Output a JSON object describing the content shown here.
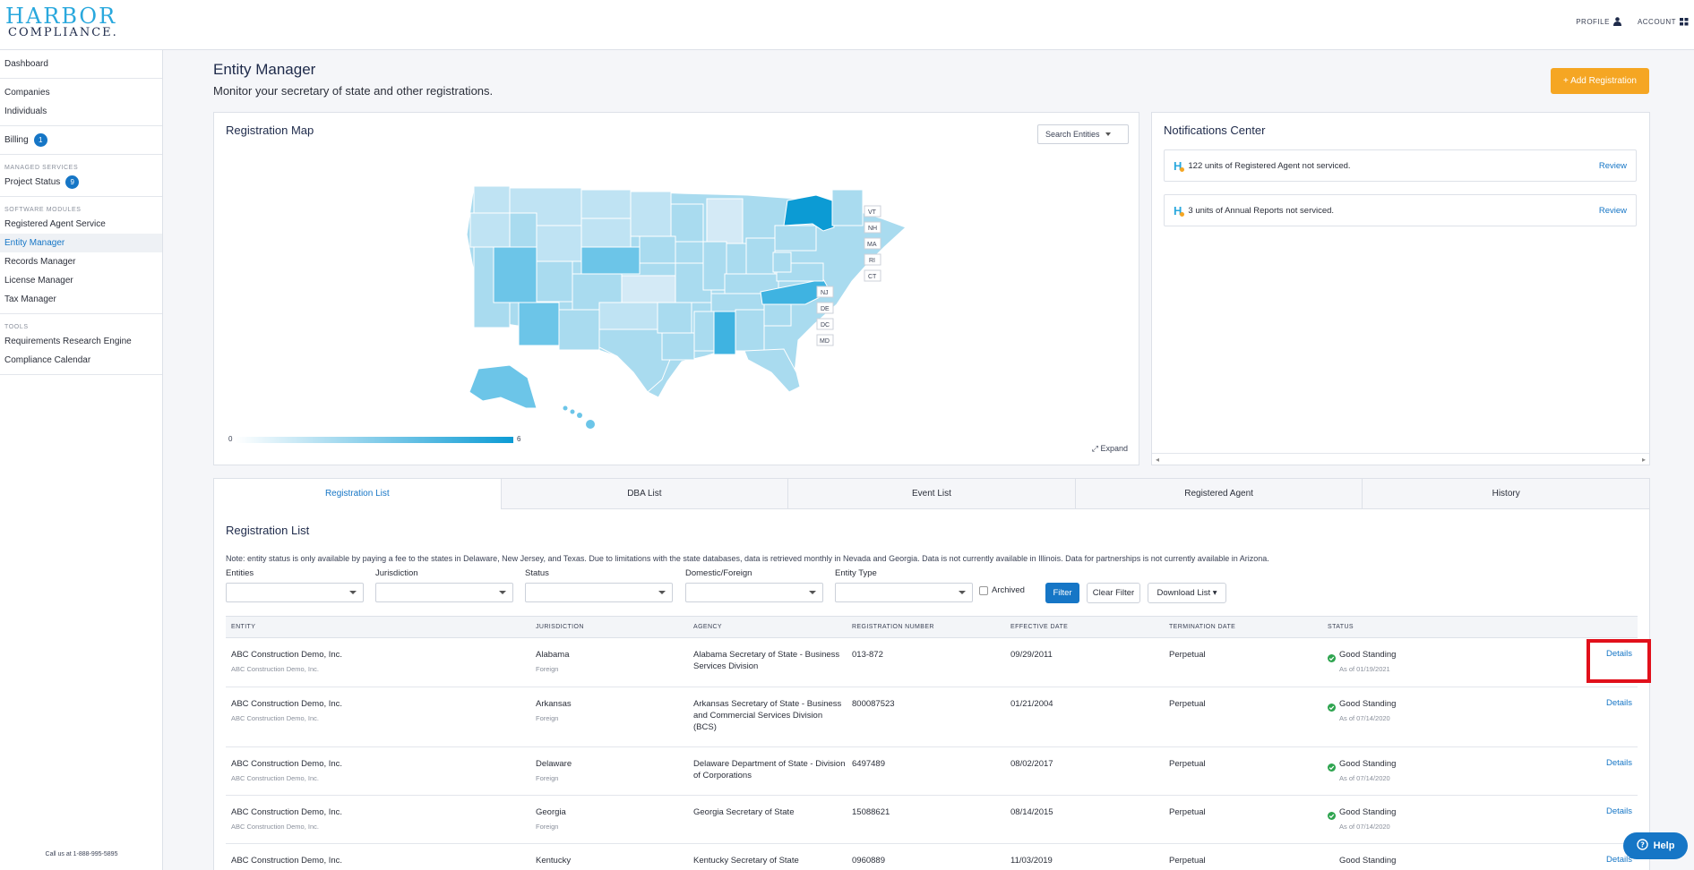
{
  "brand": {
    "line1": "HARBOR",
    "line2": "COMPLIANCE."
  },
  "topnav": {
    "profile": "PROFILE",
    "account": "ACCOUNT"
  },
  "sidebar": {
    "dashboard": "Dashboard",
    "companies": "Companies",
    "individuals": "Individuals",
    "billing": "Billing",
    "billing_badge": "1",
    "managed_services_header": "MANAGED SERVICES",
    "project_status": "Project Status",
    "project_status_badge": "9",
    "software_modules_header": "SOFTWARE MODULES",
    "registered_agent_service": "Registered Agent Service",
    "entity_manager": "Entity Manager",
    "records_manager": "Records Manager",
    "license_manager": "License Manager",
    "tax_manager": "Tax Manager",
    "tools_header": "TOOLS",
    "requirements_research_engine": "Requirements Research Engine",
    "compliance_calendar": "Compliance Calendar",
    "call_us": "Call us at 1-888-995-5895"
  },
  "header": {
    "title": "Entity Manager",
    "subtitle": "Monitor your secretary of state and other registrations.",
    "add_button": "+ Add Registration"
  },
  "map": {
    "title": "Registration Map",
    "search": "Search Entities",
    "legend_min": "0",
    "legend_max": "6",
    "expand": "Expand",
    "small_states": [
      "VT",
      "NH",
      "MA",
      "RI",
      "CT",
      "NJ",
      "DE",
      "DC",
      "MD"
    ],
    "colors": {
      "low": "#d4eaf6",
      "mid": "#a9dbef",
      "high": "#6cc5e8",
      "max": "#0c9bd4"
    }
  },
  "notifications": {
    "title": "Notifications Center",
    "items": [
      {
        "count": "122 units",
        "text": " of Registered Agent not serviced.",
        "action": "Review"
      },
      {
        "count": "3 units",
        "text": " of Annual Reports not serviced.",
        "action": "Review"
      }
    ]
  },
  "tabs": [
    "Registration List",
    "DBA List",
    "Event List",
    "Registered Agent",
    "History"
  ],
  "registration_list": {
    "title": "Registration List",
    "note": "Note: entity status is only available by paying a fee to the states in Delaware, New Jersey, and Texas. Due to limitations with the state databases, data is retrieved monthly in Nevada and Georgia. Data is not currently available in Illinois. Data for partnerships is not currently available in Arizona.",
    "filters": {
      "entities": "Entities",
      "jurisdiction": "Jurisdiction",
      "status": "Status",
      "domestic_foreign": "Domestic/Foreign",
      "entity_type": "Entity Type",
      "archived": "Archived",
      "filter_btn": "Filter",
      "clear_btn": "Clear Filter",
      "download_btn": "Download List ▾"
    },
    "columns": [
      "ENTITY",
      "JURISDICTION",
      "AGENCY",
      "REGISTRATION NUMBER",
      "EFFECTIVE DATE",
      "TERMINATION DATE",
      "STATUS"
    ],
    "details_label": "Details",
    "rows": [
      {
        "entity": "ABC Construction Demo, Inc.",
        "entity_sub": "ABC Construction Demo, Inc.",
        "jurisdiction": "Alabama",
        "jurisdiction_sub": "Foreign",
        "agency": "Alabama Secretary of State - Business Services Division",
        "reg_no": "013-872",
        "effective": "09/29/2011",
        "termination": "Perpetual",
        "status": "Good Standing",
        "status_sub": "As of 01/19/2021"
      },
      {
        "entity": "ABC Construction Demo, Inc.",
        "entity_sub": "ABC Construction Demo, Inc.",
        "jurisdiction": "Arkansas",
        "jurisdiction_sub": "Foreign",
        "agency": "Arkansas Secretary of State - Business and Commercial Services Division (BCS)",
        "reg_no": "800087523",
        "effective": "01/21/2004",
        "termination": "Perpetual",
        "status": "Good Standing",
        "status_sub": "As of 07/14/2020"
      },
      {
        "entity": "ABC Construction Demo, Inc.",
        "entity_sub": "ABC Construction Demo, Inc.",
        "jurisdiction": "Delaware",
        "jurisdiction_sub": "Foreign",
        "agency": "Delaware Department of State - Division of Corporations",
        "reg_no": "6497489",
        "effective": "08/02/2017",
        "termination": "Perpetual",
        "status": "Good Standing",
        "status_sub": "As of 07/14/2020"
      },
      {
        "entity": "ABC Construction Demo, Inc.",
        "entity_sub": "ABC Construction Demo, Inc.",
        "jurisdiction": "Georgia",
        "jurisdiction_sub": "Foreign",
        "agency": "Georgia Secretary of State",
        "reg_no": "15088621",
        "effective": "08/14/2015",
        "termination": "Perpetual",
        "status": "Good Standing",
        "status_sub": "As of 07/14/2020"
      },
      {
        "entity": "ABC Construction Demo, Inc.",
        "entity_sub": "",
        "jurisdiction": "Kentucky",
        "jurisdiction_sub": "",
        "agency": "Kentucky Secretary of State",
        "reg_no": "0960889",
        "effective": "11/03/2019",
        "termination": "Perpetual",
        "status": "Good Standing",
        "status_sub": ""
      }
    ]
  },
  "help": {
    "label": "Help"
  }
}
